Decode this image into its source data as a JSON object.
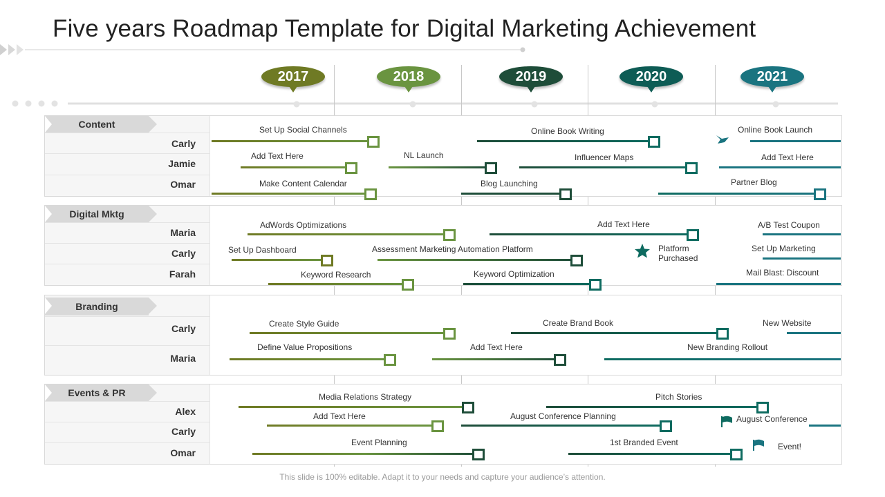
{
  "title": "Five years Roadmap Template for Digital Marketing Achievement",
  "footer": "This slide is 100% editable. Adapt it to your needs and capture your audience’s attention.",
  "years": [
    {
      "label": "2017",
      "color": "#6f7a24"
    },
    {
      "label": "2018",
      "color": "#6a9440"
    },
    {
      "label": "2019",
      "color": "#1e4d39"
    },
    {
      "label": "2020",
      "color": "#0e5c55"
    },
    {
      "label": "2021",
      "color": "#1a7480"
    }
  ],
  "colors": {
    "olive": "#6f7a24",
    "green": "#6a9440",
    "dark": "#1e4d39",
    "teal": "#0e6b60",
    "cyan": "#1a7480"
  },
  "sections": [
    {
      "name": "Content",
      "people": [
        "Carly",
        "Jamie",
        "Omar"
      ],
      "tasks": [
        {
          "label": "Set Up Social Channels"
        },
        {
          "label": "Online Book Writing"
        },
        {
          "label": "Online Book Launch"
        },
        {
          "label": "Add Text Here"
        },
        {
          "label": "NL Launch"
        },
        {
          "label": "Influencer Maps"
        },
        {
          "label": "Add Text Here"
        },
        {
          "label": "Make Content Calendar"
        },
        {
          "label": "Blog Launching"
        },
        {
          "label": "Partner Blog"
        }
      ]
    },
    {
      "name": "Digital Mktg",
      "people": [
        "Maria",
        "Carly",
        "Farah"
      ],
      "tasks": [
        {
          "label": "AdWords Optimizations"
        },
        {
          "label": "Add Text Here"
        },
        {
          "label": "A/B Test Coupon"
        },
        {
          "label": "Set Up Dashboard"
        },
        {
          "label": "Assessment Marketing Automation Platform"
        },
        {
          "label": "Platform Purchased"
        },
        {
          "label": "Set Up Marketing"
        },
        {
          "label": "Keyword Research"
        },
        {
          "label": "Keyword Optimization"
        },
        {
          "label": "Mail Blast: Discount"
        }
      ]
    },
    {
      "name": "Branding",
      "people": [
        "Carly",
        "Maria"
      ],
      "tasks": [
        {
          "label": "Create Style Guide"
        },
        {
          "label": "Create Brand Book"
        },
        {
          "label": "New Website"
        },
        {
          "label": "Define Value Propositions"
        },
        {
          "label": "Add Text Here"
        },
        {
          "label": "New Branding Rollout"
        }
      ]
    },
    {
      "name": "Events & PR",
      "people": [
        "Alex",
        "Carly",
        "Omar"
      ],
      "tasks": [
        {
          "label": "Media Relations Strategy"
        },
        {
          "label": "Pitch Stories"
        },
        {
          "label": "Add Text Here"
        },
        {
          "label": "August Conference Planning"
        },
        {
          "label": "August Conference"
        },
        {
          "label": "Event Planning"
        },
        {
          "label": "1st Branded Event"
        },
        {
          "label": "Event!"
        }
      ]
    }
  ]
}
